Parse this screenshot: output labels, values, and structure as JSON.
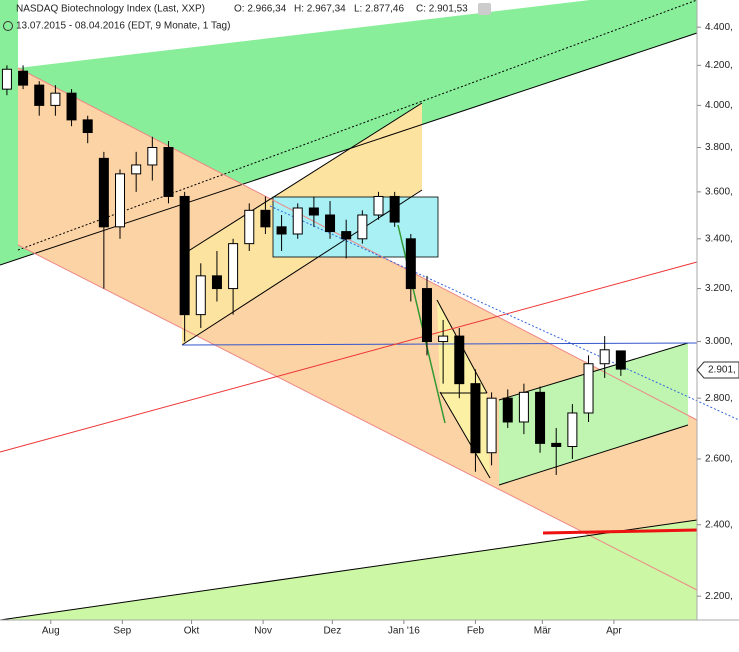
{
  "header": {
    "title": "NASDAQ Biotechnology Index (Last, XXP)",
    "open": "O: 2.966,34",
    "high": "H: 2.967,34",
    "low": "L: 2.877,46",
    "close": "C: 2.901,53",
    "range": "13.07.2015 - 08.04.2016 (EDT, 9 Monate, 1 Tag)",
    "last_price": "2.901,"
  },
  "chart_data": {
    "type": "candlestick",
    "log_scale": true,
    "ylim": [
      2137,
      4548
    ],
    "yticks": [
      {
        "value": 4400,
        "label": "4.400,"
      },
      {
        "value": 4200,
        "label": "4.200,"
      },
      {
        "value": 4000,
        "label": "4.000,"
      },
      {
        "value": 3800,
        "label": "3.800,"
      },
      {
        "value": 3600,
        "label": "3.600,"
      },
      {
        "value": 3400,
        "label": "3.400,"
      },
      {
        "value": 3200,
        "label": "3.200,"
      },
      {
        "value": 3000,
        "label": "3.000,"
      },
      {
        "value": 2800,
        "label": "2.800,"
      },
      {
        "value": 2600,
        "label": "2.600,"
      },
      {
        "value": 2400,
        "label": "2.400,"
      },
      {
        "value": 2200,
        "label": "2.200,"
      }
    ],
    "xlim": [
      -3,
      299
    ],
    "xticks": [
      {
        "value": 19,
        "label": "Aug"
      },
      {
        "value": 50,
        "label": "Sep"
      },
      {
        "value": 80,
        "label": "Okt"
      },
      {
        "value": 111,
        "label": "Nov"
      },
      {
        "value": 141,
        "label": "Dez"
      },
      {
        "value": 172,
        "label": "Jan '16"
      },
      {
        "value": 203,
        "label": "Feb"
      },
      {
        "value": 232,
        "label": "Mär"
      },
      {
        "value": 263,
        "label": "Apr"
      }
    ],
    "x": [
      0,
      7,
      14,
      21,
      28,
      35,
      42,
      49,
      56,
      63,
      70,
      77,
      84,
      91,
      98,
      105,
      112,
      119,
      126,
      133,
      140,
      147,
      154,
      161,
      168,
      175,
      182,
      189,
      196,
      203,
      210,
      217,
      224,
      231,
      238,
      245,
      252,
      259,
      266
    ],
    "open": [
      4080,
      4170,
      4100,
      4000,
      4060,
      3930,
      3750,
      3450,
      3680,
      3720,
      3800,
      3580,
      3100,
      3250,
      3200,
      3380,
      3520,
      3450,
      3420,
      3530,
      3500,
      3430,
      3400,
      3500,
      3580,
      3400,
      3200,
      3000,
      3020,
      2850,
      2620,
      2800,
      2720,
      2820,
      2650,
      2640,
      2750,
      2920,
      2966
    ],
    "high": [
      4200,
      4200,
      4120,
      4100,
      4080,
      3950,
      3780,
      3700,
      3780,
      3850,
      3830,
      3600,
      3300,
      3350,
      3400,
      3550,
      3580,
      3500,
      3550,
      3580,
      3560,
      3480,
      3520,
      3600,
      3600,
      3420,
      3250,
      3080,
      3050,
      2900,
      2820,
      2830,
      2850,
      2840,
      2700,
      2780,
      2950,
      3020,
      2967
    ],
    "low": [
      4050,
      4080,
      3950,
      3950,
      3900,
      3820,
      3200,
      3400,
      3600,
      3650,
      3550,
      3000,
      3050,
      3150,
      3100,
      3350,
      3420,
      3350,
      3400,
      3450,
      3400,
      3320,
      3380,
      3480,
      3450,
      3150,
      2950,
      2850,
      2800,
      2560,
      2580,
      2700,
      2680,
      2620,
      2550,
      2600,
      2720,
      2870,
      2877
    ],
    "close": [
      4180,
      4100,
      4000,
      4060,
      3930,
      3870,
      3450,
      3680,
      3720,
      3800,
      3580,
      3100,
      3250,
      3200,
      3380,
      3520,
      3450,
      3420,
      3530,
      3500,
      3430,
      3400,
      3500,
      3580,
      3470,
      3200,
      3000,
      3020,
      2850,
      2620,
      2800,
      2720,
      2820,
      2650,
      2640,
      2750,
      2920,
      2970,
      2901
    ]
  }
}
